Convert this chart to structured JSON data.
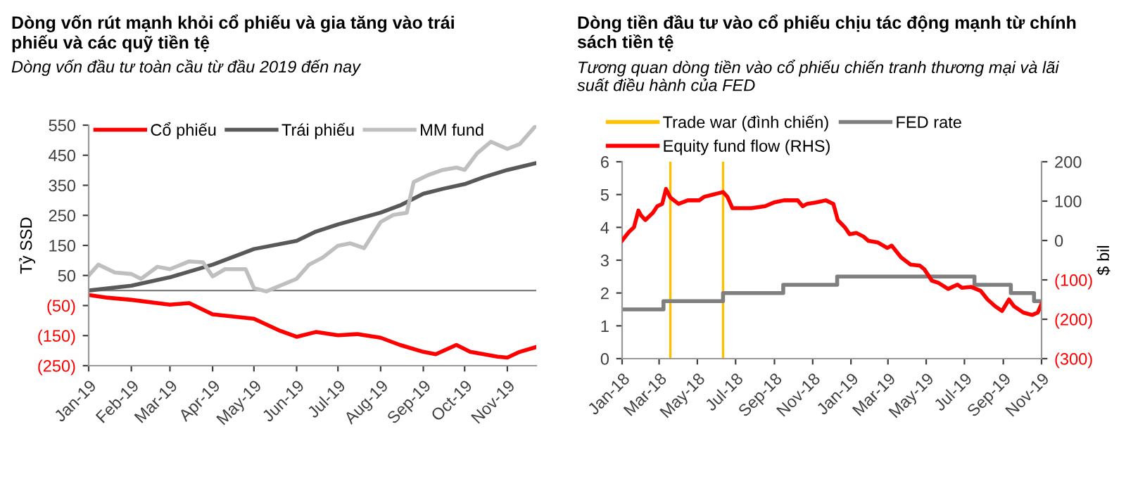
{
  "chart_data": [
    {
      "type": "line",
      "title": "Dòng vốn rút mạnh khỏi cổ phiếu và gia tăng vào trái\nphiếu và các quỹ tiền tệ",
      "subtitle": "Dòng vốn đầu tư toàn cầu từ đầu 2019 đến nay",
      "ylabel": "Tỷ SSD",
      "xlim": [
        "2019-01-01",
        "2019-11-22"
      ],
      "xticks": [
        {
          "value": "2019-01-01",
          "label": "Jan-19"
        },
        {
          "value": "2019-02-01",
          "label": "Feb-19"
        },
        {
          "value": "2019-03-01",
          "label": "Mar-19"
        },
        {
          "value": "2019-04-01",
          "label": "Apr-19"
        },
        {
          "value": "2019-05-01",
          "label": "May-19"
        },
        {
          "value": "2019-06-01",
          "label": "Jun-19"
        },
        {
          "value": "2019-07-01",
          "label": "Jul-19"
        },
        {
          "value": "2019-08-01",
          "label": "Aug-19"
        },
        {
          "value": "2019-09-01",
          "label": "Sep-19"
        },
        {
          "value": "2019-10-01",
          "label": "Oct-19"
        },
        {
          "value": "2019-11-01",
          "label": "Nov-19"
        }
      ],
      "ylim": [
        -250,
        550
      ],
      "yticks": [
        {
          "value": -250,
          "label": "(250)"
        },
        {
          "value": -150,
          "label": "(150)"
        },
        {
          "value": -50,
          "label": "(50)"
        },
        50,
        150,
        250,
        350,
        450,
        550
      ],
      "legend": "top",
      "grid": false,
      "series": [
        {
          "name": "Cổ phiếu",
          "color": "#ff0000",
          "x": [
            "2019-01-01",
            "2019-01-15",
            "2019-02-01",
            "2019-03-01",
            "2019-03-15",
            "2019-04-01",
            "2019-05-01",
            "2019-05-20",
            "2019-06-01",
            "2019-06-15",
            "2019-07-01",
            "2019-07-15",
            "2019-08-01",
            "2019-08-15",
            "2019-09-01",
            "2019-09-10",
            "2019-09-25",
            "2019-10-05",
            "2019-10-25",
            "2019-11-01",
            "2019-11-10",
            "2019-11-22"
          ],
          "values": [
            -15,
            -24,
            -31,
            -47,
            -42,
            -79,
            -94,
            -134,
            -154,
            -138,
            -149,
            -145,
            -157,
            -181,
            -204,
            -212,
            -181,
            -204,
            -220,
            -223,
            -204,
            -188
          ]
        },
        {
          "name": "Trái phiếu",
          "color": "#595959",
          "x": [
            "2019-01-01",
            "2019-02-01",
            "2019-03-01",
            "2019-04-01",
            "2019-05-01",
            "2019-06-01",
            "2019-06-15",
            "2019-07-01",
            "2019-08-01",
            "2019-08-15",
            "2019-09-01",
            "2019-09-15",
            "2019-10-01",
            "2019-10-15",
            "2019-11-01",
            "2019-11-22"
          ],
          "values": [
            0,
            16,
            44,
            86,
            138,
            165,
            196,
            220,
            259,
            283,
            322,
            338,
            354,
            377,
            401,
            424
          ]
        },
        {
          "name": "MM fund",
          "color": "#bfbfbf",
          "x": [
            "2019-01-01",
            "2019-01-08",
            "2019-01-20",
            "2019-02-01",
            "2019-02-08",
            "2019-02-20",
            "2019-03-01",
            "2019-03-15",
            "2019-03-25",
            "2019-04-01",
            "2019-04-10",
            "2019-04-25",
            "2019-05-01",
            "2019-05-10",
            "2019-05-20",
            "2019-06-01",
            "2019-06-10",
            "2019-06-20",
            "2019-07-01",
            "2019-07-10",
            "2019-07-20",
            "2019-08-01",
            "2019-08-10",
            "2019-08-20",
            "2019-08-25",
            "2019-09-05",
            "2019-09-15",
            "2019-09-25",
            "2019-10-01",
            "2019-10-10",
            "2019-10-20",
            "2019-11-01",
            "2019-11-10",
            "2019-11-22"
          ],
          "values": [
            50,
            86,
            60,
            55,
            39,
            79,
            71,
            97,
            94,
            47,
            71,
            71,
            8,
            -3,
            16,
            39,
            86,
            110,
            149,
            157,
            141,
            228,
            251,
            259,
            361,
            385,
            401,
            409,
            401,
            456,
            495,
            471,
            487,
            550
          ]
        }
      ]
    },
    {
      "type": "line",
      "title": "Dòng tiền đầu tư vào cổ phiếu chịu tác động mạnh từ chính\nsách tiền tệ",
      "subtitle": "Tương quan dòng tiền vào cổ phiếu chiến tranh thương mại và lãi\nsuất điều hành của FED",
      "y2label": "$ bil",
      "xlim": [
        "2018-01-01",
        "2019-11-01"
      ],
      "xticks": [
        {
          "value": "2018-01-01",
          "label": "Jan-18"
        },
        {
          "value": "2018-03-01",
          "label": "Mar-18"
        },
        {
          "value": "2018-05-01",
          "label": "May-18"
        },
        {
          "value": "2018-07-01",
          "label": "Jul-18"
        },
        {
          "value": "2018-09-01",
          "label": "Sep-18"
        },
        {
          "value": "2018-11-01",
          "label": "Nov-18"
        },
        {
          "value": "2019-01-01",
          "label": "Jan-19"
        },
        {
          "value": "2019-03-01",
          "label": "Mar-19"
        },
        {
          "value": "2019-05-01",
          "label": "May-19"
        },
        {
          "value": "2019-07-01",
          "label": "Jul-19"
        },
        {
          "value": "2019-09-01",
          "label": "Sep-19"
        },
        {
          "value": "2019-11-01",
          "label": "Nov-19"
        }
      ],
      "ylim": [
        0,
        6
      ],
      "yticks": [
        0,
        1,
        2,
        3,
        4,
        5,
        6
      ],
      "y2lim": [
        -300,
        200
      ],
      "y2ticks": [
        {
          "value": -300,
          "label": "(300)"
        },
        {
          "value": -200,
          "label": "(200)"
        },
        {
          "value": -100,
          "label": "(100)"
        },
        0,
        100,
        200
      ],
      "legend": "top",
      "grid": false,
      "ref_lines": [
        {
          "axis": "x",
          "value": "2018-03-19",
          "label": "Trade war (đình chiến)",
          "color": "#ffc000"
        },
        {
          "axis": "x",
          "value": "2018-06-11",
          "color": "#ffc000"
        }
      ],
      "series": [
        {
          "name": "FED rate",
          "type": "step",
          "color": "#7f7f7f",
          "x": [
            "2018-01-01",
            "2018-03-08",
            "2018-06-11",
            "2018-09-15",
            "2018-12-10",
            "2019-07-17",
            "2019-09-13",
            "2019-10-20",
            "2019-11-01"
          ],
          "values": [
            1.5,
            1.75,
            2.0,
            2.25,
            2.5,
            2.25,
            2.0,
            1.75,
            1.75
          ]
        },
        {
          "name": "Equity fund flow (RHS)",
          "type": "line",
          "axis": "y2",
          "color": "#ff0000",
          "x": [
            "2018-01-01",
            "2018-01-12",
            "2018-01-20",
            "2018-01-27",
            "2018-01-31",
            "2018-02-07",
            "2018-02-19",
            "2018-02-26",
            "2018-03-06",
            "2018-03-12",
            "2018-03-19",
            "2018-04-01",
            "2018-04-16",
            "2018-05-04",
            "2018-05-12",
            "2018-05-27",
            "2018-06-11",
            "2018-06-18",
            "2018-06-26",
            "2018-07-26",
            "2018-08-17",
            "2018-09-01",
            "2018-09-16",
            "2018-10-08",
            "2018-10-16",
            "2018-10-23",
            "2018-11-07",
            "2018-11-22",
            "2018-12-04",
            "2018-12-11",
            "2018-12-22",
            "2018-12-30",
            "2019-01-10",
            "2019-01-21",
            "2019-01-29",
            "2019-02-13",
            "2019-02-28",
            "2019-03-07",
            "2019-03-22",
            "2019-04-06",
            "2019-04-21",
            "2019-04-28",
            "2019-05-10",
            "2019-05-21",
            "2019-06-05",
            "2019-06-20",
            "2019-06-27",
            "2019-07-12",
            "2019-07-27",
            "2019-08-07",
            "2019-08-19",
            "2019-08-30",
            "2019-09-10",
            "2019-09-18",
            "2019-10-03",
            "2019-10-17",
            "2019-10-26",
            "2019-11-01"
          ],
          "values": [
            0,
            22,
            34,
            76,
            64,
            52,
            70,
            87,
            93,
            131,
            109,
            93,
            102,
            102,
            111,
            117,
            123,
            111,
            82,
            82,
            87,
            97,
            102,
            102,
            87,
            93,
            97,
            102,
            93,
            52,
            34,
            16,
            19,
            10,
            -1,
            -5,
            -19,
            -13,
            -43,
            -61,
            -64,
            -73,
            -102,
            -108,
            -123,
            -112,
            -120,
            -118,
            -128,
            -150,
            -167,
            -179,
            -150,
            -167,
            -183,
            -189,
            -183,
            -161
          ]
        }
      ]
    }
  ]
}
